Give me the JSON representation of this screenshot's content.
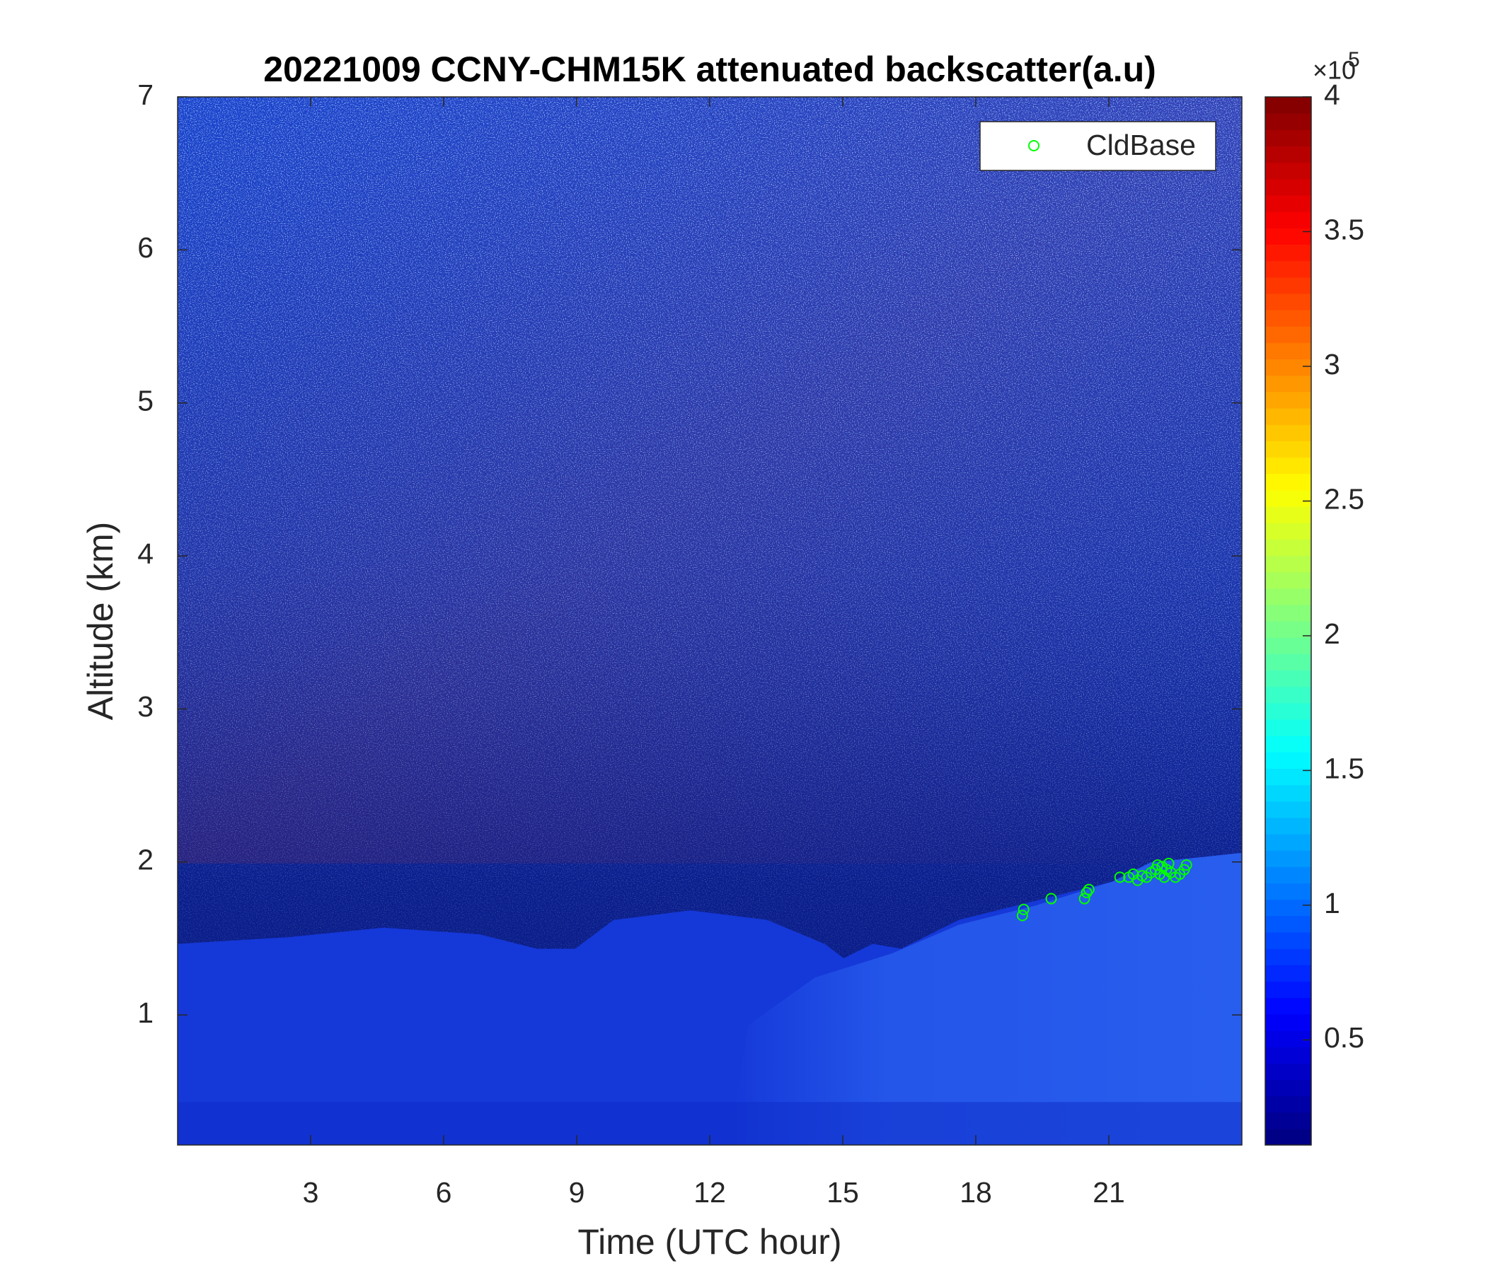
{
  "chart_data": {
    "type": "scatter",
    "title": "20221009 CCNY-CHM15K attenuated backscatter(a.u)",
    "x_label": "Time (UTC hour)",
    "y_label": "Altitude (km)",
    "xlim": [
      0,
      24
    ],
    "xticks": [
      3,
      6,
      9,
      12,
      15,
      18,
      21
    ],
    "ylim": [
      0.15,
      7
    ],
    "yticks": [
      1,
      2,
      3,
      4,
      5,
      6,
      7
    ],
    "colorbar_lim": [
      0.11,
      4
    ],
    "colorbar_ticks": [
      0.5,
      1,
      1.5,
      2,
      2.5,
      3,
      3.5,
      4
    ],
    "colorbar_multiplier": "×10",
    "colorbar_exponent": "5",
    "colormap": "jet",
    "legend_position": "upper right",
    "series": [
      {
        "name": "CldBase",
        "color": "#00ff00",
        "x": [
          19.05,
          19.08,
          19.7,
          20.45,
          20.5,
          20.55,
          21.25,
          21.45,
          21.55,
          21.65,
          21.75,
          21.85,
          21.95,
          22.05,
          22.1,
          22.15,
          22.2,
          22.25,
          22.3,
          22.35,
          22.4,
          22.5,
          22.6,
          22.7,
          22.75
        ],
        "y": [
          1.65,
          1.69,
          1.76,
          1.76,
          1.8,
          1.82,
          1.9,
          1.9,
          1.92,
          1.88,
          1.91,
          1.9,
          1.93,
          1.95,
          1.98,
          1.92,
          1.97,
          1.9,
          1.95,
          1.99,
          1.93,
          1.9,
          1.92,
          1.95,
          1.98
        ]
      }
    ]
  }
}
